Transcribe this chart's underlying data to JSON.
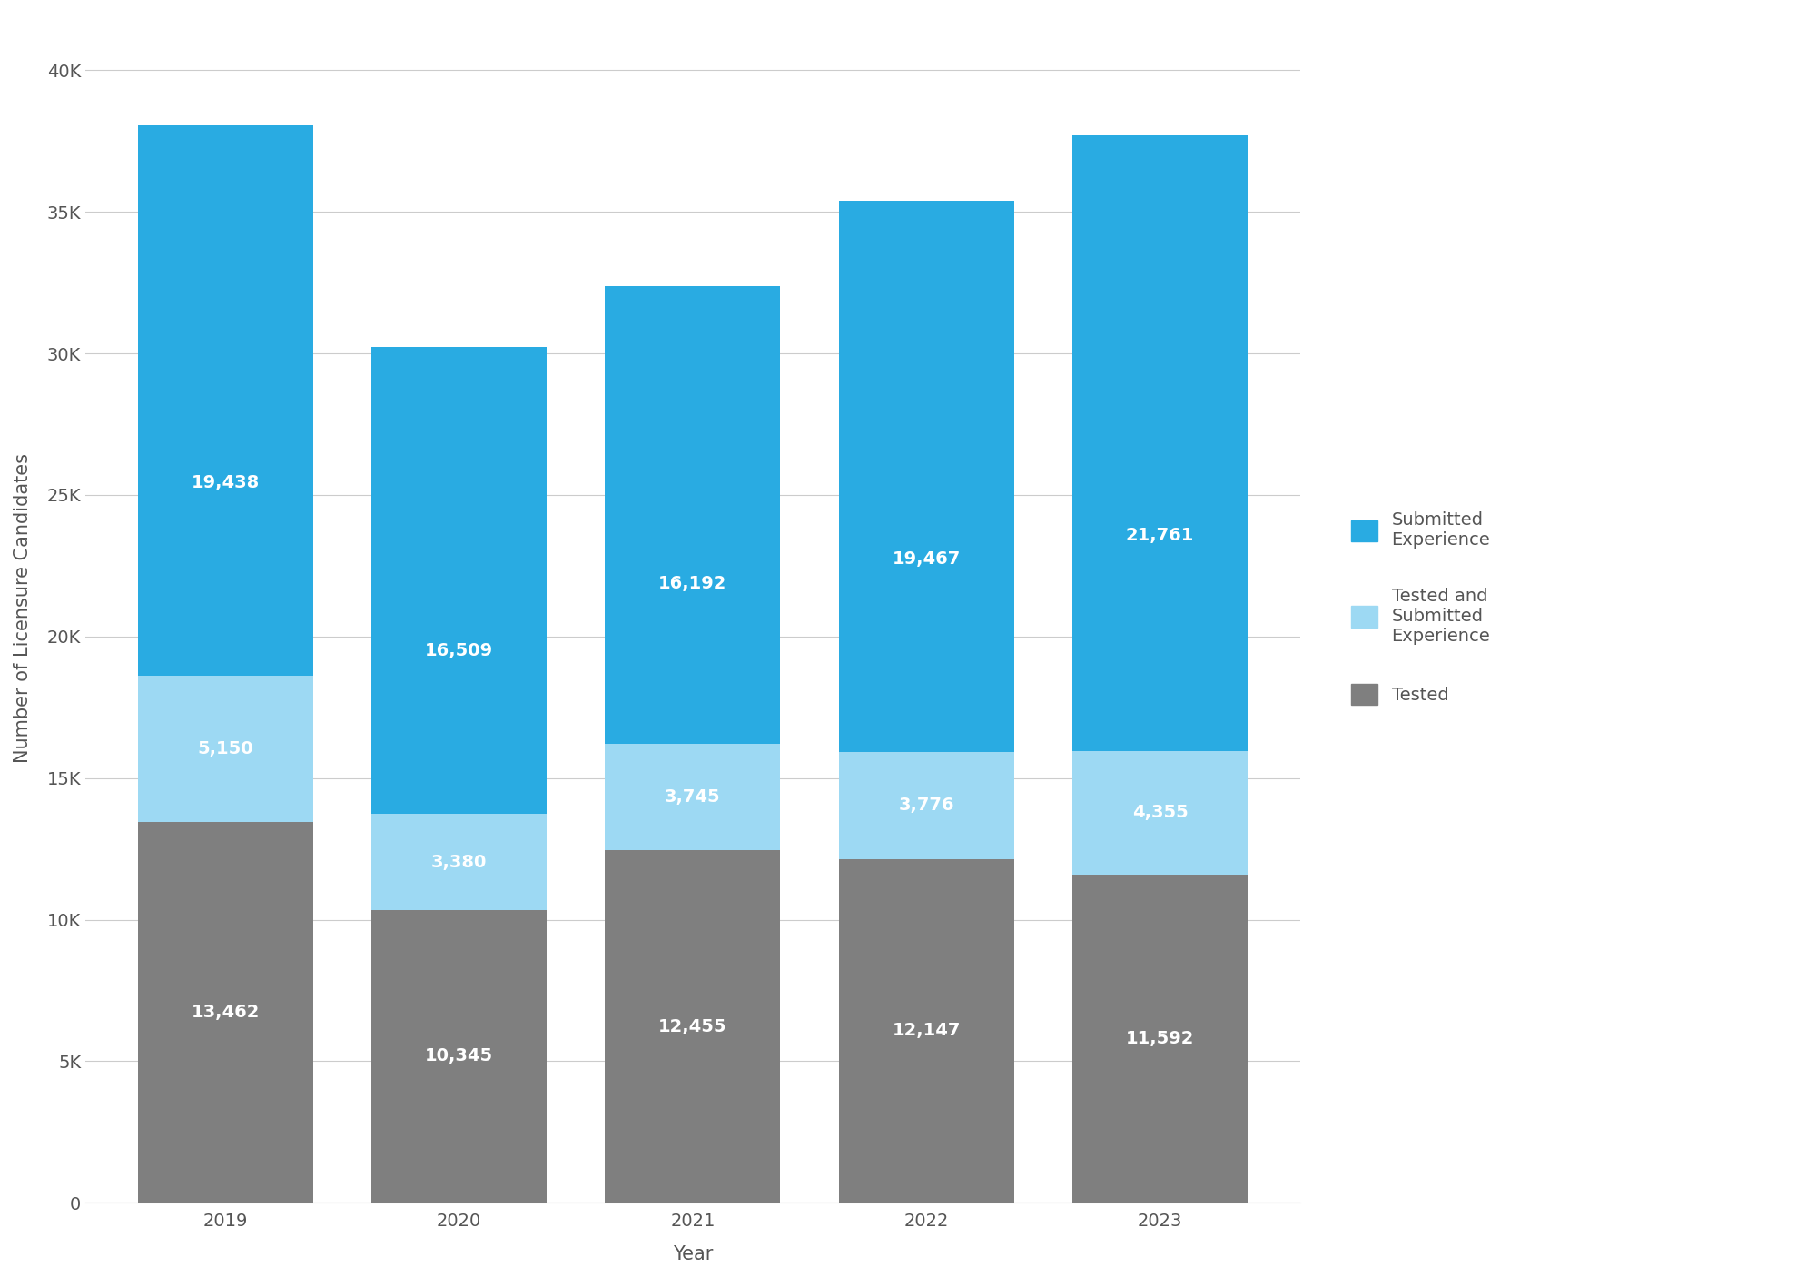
{
  "years": [
    "2019",
    "2020",
    "2021",
    "2022",
    "2023"
  ],
  "tested": [
    13462,
    10345,
    12455,
    12147,
    11592
  ],
  "tested_submitted": [
    5150,
    3380,
    3745,
    3776,
    4355
  ],
  "submitted": [
    19438,
    16509,
    16192,
    19467,
    21761
  ],
  "color_submitted": "#29ABE2",
  "color_tested_submitted": "#9DD9F3",
  "color_tested": "#7F7F7F",
  "ylabel": "Number of Licensure Candidates",
  "xlabel": "Year",
  "ylim_max": 42000,
  "yticks": [
    0,
    5000,
    10000,
    15000,
    20000,
    25000,
    30000,
    35000,
    40000
  ],
  "ytick_labels": [
    "0",
    "5K",
    "10K",
    "15K",
    "20K",
    "25K",
    "30K",
    "35K",
    "40K"
  ],
  "legend_labels": [
    "Submitted\nExperience",
    "Tested and\nSubmitted\nExperience",
    "Tested"
  ],
  "background_color": "#ffffff",
  "label_fontsize": 14,
  "axis_label_fontsize": 15,
  "tick_fontsize": 14,
  "legend_fontsize": 14,
  "bar_width": 0.75
}
